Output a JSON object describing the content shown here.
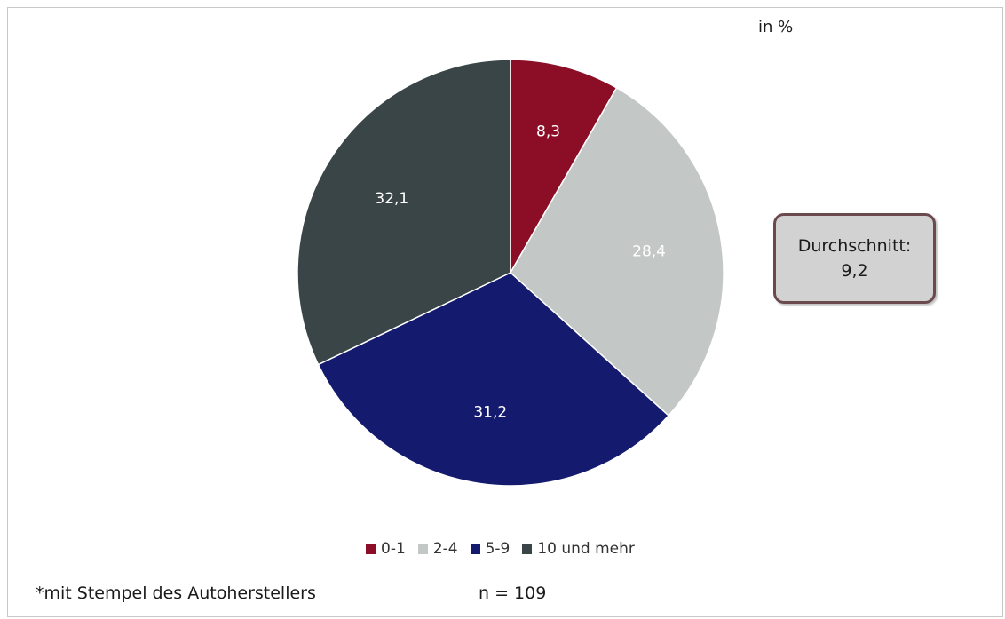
{
  "unit_label": "in %",
  "callout": {
    "title": "Durchschnitt:",
    "value": "9,2"
  },
  "footnote": "*mit Stempel des Autoherstellers",
  "sample_size": "n = 109",
  "chart_data": {
    "type": "pie",
    "title": "",
    "unit": "in %",
    "slices": [
      {
        "label": "0-1",
        "value": 8.3,
        "display": "8,3",
        "color": "#8b0e26",
        "label_color": "#ffffff"
      },
      {
        "label": "2-4",
        "value": 28.4,
        "display": "28,4",
        "color": "#c3c8c7",
        "label_color": "#ffffff"
      },
      {
        "label": "5-9",
        "value": 31.2,
        "display": "31,2",
        "color": "#141a6e",
        "label_color": "#ffffff"
      },
      {
        "label": "10 und mehr",
        "value": 32.1,
        "display": "32,1",
        "color": "#3a4548",
        "label_color": "#ffffff"
      }
    ],
    "start": "12 o'clock",
    "direction": "clockwise",
    "legend_position": "bottom"
  }
}
